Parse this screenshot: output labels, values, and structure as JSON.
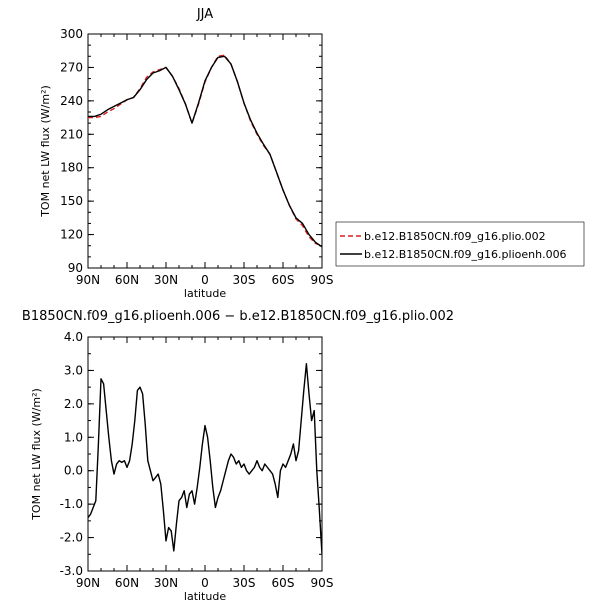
{
  "chart_data": [
    {
      "type": "line",
      "title": "JJA",
      "xlabel": "latitude",
      "ylabel": "TOM net LW flux (W/m²)",
      "ylim": [
        90,
        300
      ],
      "xlim": [
        90,
        -90
      ],
      "x_tick_labels": [
        "90N",
        "60N",
        "30N",
        "0",
        "30S",
        "60S",
        "90S"
      ],
      "x_tick_values": [
        90,
        60,
        30,
        0,
        -30,
        -60,
        -90
      ],
      "y_tick_values": [
        90,
        120,
        150,
        180,
        210,
        240,
        270,
        300
      ],
      "legend_position": "right",
      "series": [
        {
          "name": "b.e12.B1850CN.f09_g16.plio.002",
          "color": "#d62020",
          "dash": "dashed",
          "x": [
            90,
            85,
            80,
            75,
            70,
            65,
            60,
            55,
            50,
            45,
            40,
            35,
            30,
            25,
            20,
            15,
            10,
            5,
            0,
            -5,
            -10,
            -15,
            -20,
            -25,
            -30,
            -35,
            -40,
            -45,
            -50,
            -55,
            -60,
            -65,
            -70,
            -75,
            -80,
            -85,
            -90
          ],
          "values": [
            225,
            225,
            226,
            230,
            233,
            237,
            241,
            243,
            251,
            261,
            266,
            268,
            270,
            262,
            251,
            237,
            220,
            237,
            257,
            270,
            280,
            281,
            273,
            257,
            238,
            222,
            210,
            200,
            192,
            176,
            160,
            146,
            134,
            128,
            118,
            112,
            110
          ]
        },
        {
          "name": "b.e12.B1850CN.f09_g16.plioenh.006",
          "color": "#000000",
          "dash": "solid",
          "x": [
            90,
            85,
            80,
            75,
            70,
            65,
            60,
            55,
            50,
            45,
            40,
            35,
            30,
            25,
            20,
            15,
            10,
            5,
            0,
            -5,
            -10,
            -15,
            -20,
            -25,
            -30,
            -35,
            -40,
            -45,
            -50,
            -55,
            -60,
            -65,
            -70,
            -75,
            -80,
            -85,
            -90
          ],
          "values": [
            226,
            226,
            228,
            232,
            235,
            238,
            241,
            243,
            250,
            259,
            265,
            267,
            270,
            262,
            250,
            237,
            220,
            238,
            258,
            270,
            279,
            280,
            273,
            257,
            238,
            223,
            211,
            201,
            192,
            176,
            160,
            146,
            135,
            130,
            120,
            113,
            109
          ]
        }
      ]
    },
    {
      "type": "line",
      "title": "B1850CN.f09_g16.plioenh.006 − b.e12.B1850CN.f09_g16.plio.002",
      "xlabel": "latitude",
      "ylabel": "TOM net LW flux (W/m²)",
      "ylim": [
        -3.0,
        4.0
      ],
      "xlim": [
        90,
        -90
      ],
      "x_tick_labels": [
        "90N",
        "60N",
        "30N",
        "0",
        "30S",
        "60S",
        "90S"
      ],
      "x_tick_values": [
        90,
        60,
        30,
        0,
        -30,
        -60,
        -90
      ],
      "y_tick_labels": [
        "4.0",
        "3.0",
        "2.0",
        "1.0",
        "0.0",
        "-1.0",
        "-2.0",
        "-3.0"
      ],
      "y_tick_values": [
        4,
        3,
        2,
        1,
        0,
        -1,
        -2,
        -3
      ],
      "series": [
        {
          "color": "#000000",
          "x": [
            90,
            88,
            86,
            84,
            82,
            80,
            78,
            76,
            74,
            72,
            70,
            68,
            66,
            64,
            62,
            60,
            58,
            56,
            54,
            52,
            50,
            48,
            46,
            44,
            42,
            40,
            38,
            36,
            34,
            32,
            30,
            28,
            26,
            24,
            22,
            20,
            18,
            16,
            14,
            12,
            10,
            8,
            6,
            4,
            2,
            0,
            -2,
            -4,
            -6,
            -8,
            -10,
            -12,
            -14,
            -16,
            -18,
            -20,
            -22,
            -24,
            -26,
            -28,
            -30,
            -32,
            -34,
            -36,
            -38,
            -40,
            -42,
            -44,
            -46,
            -48,
            -50,
            -52,
            -54,
            -56,
            -58,
            -60,
            -62,
            -64,
            -66,
            -68,
            -70,
            -72,
            -74,
            -76,
            -78,
            -80,
            -82,
            -84,
            -86,
            -88,
            -90
          ],
          "values": [
            -1.4,
            -1.3,
            -1.1,
            -0.9,
            0.8,
            2.75,
            2.6,
            1.8,
            1.0,
            0.3,
            -0.1,
            0.2,
            0.3,
            0.25,
            0.3,
            0.1,
            0.3,
            0.8,
            1.5,
            2.4,
            2.5,
            2.3,
            1.4,
            0.3,
            0.0,
            -0.3,
            -0.2,
            -0.1,
            -0.4,
            -1.2,
            -2.1,
            -1.7,
            -1.8,
            -2.4,
            -1.6,
            -0.9,
            -0.8,
            -0.6,
            -1.1,
            -0.7,
            -0.6,
            -1.0,
            -0.5,
            0.1,
            0.8,
            1.35,
            1.0,
            0.3,
            -0.5,
            -1.1,
            -0.8,
            -0.6,
            -0.3,
            0.0,
            0.3,
            0.5,
            0.4,
            0.2,
            0.3,
            0.1,
            0.2,
            0.0,
            -0.1,
            0.0,
            0.1,
            0.3,
            0.1,
            0.0,
            0.2,
            0.1,
            0.0,
            -0.1,
            -0.4,
            -0.8,
            0.0,
            0.2,
            0.1,
            0.3,
            0.5,
            0.8,
            0.3,
            0.6,
            1.5,
            2.4,
            3.2,
            2.3,
            1.5,
            1.8,
            0.0,
            -1.2,
            -2.5
          ]
        }
      ]
    }
  ]
}
